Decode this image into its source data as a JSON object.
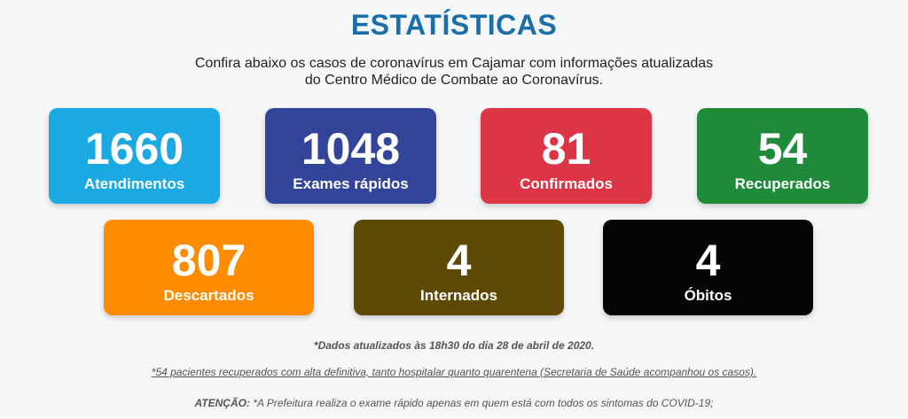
{
  "header": {
    "title": "ESTATÍSTICAS",
    "subtitle_line1": "Confira abaixo os casos de coronavírus em Cajamar com informações atualizadas",
    "subtitle_line2": "do Centro Médico de Combate ao Coronavírus."
  },
  "stats": [
    {
      "value": "1660",
      "label": "Atendimentos",
      "color": "#1aa9e3"
    },
    {
      "value": "1048",
      "label": "Exames rápidos",
      "color": "#33449b"
    },
    {
      "value": "81",
      "label": "Confirmados",
      "color": "#dc3545"
    },
    {
      "value": "54",
      "label": "Recuperados",
      "color": "#1f8a3a"
    },
    {
      "value": "807",
      "label": "Descartados",
      "color": "#ff8c00"
    },
    {
      "value": "4",
      "label": "Internados",
      "color": "#5e4a05"
    },
    {
      "value": "4",
      "label": "Óbitos",
      "color": "#050505"
    }
  ],
  "notes": {
    "updated": "*Dados atualizados às 18h30 do dia 28 de abril de 2020.",
    "recovered_note": "*54 pacientes recuperados com alta definitiva, tanto hospitalar quanto quarentena (Secretaria de Saúde acompanhou os casos).",
    "attention_label": "ATENÇÃO:",
    "attention_text": " *A Prefeitura realiza o exame rápido apenas em quem está com todos os sintomas do COVID-19;"
  }
}
